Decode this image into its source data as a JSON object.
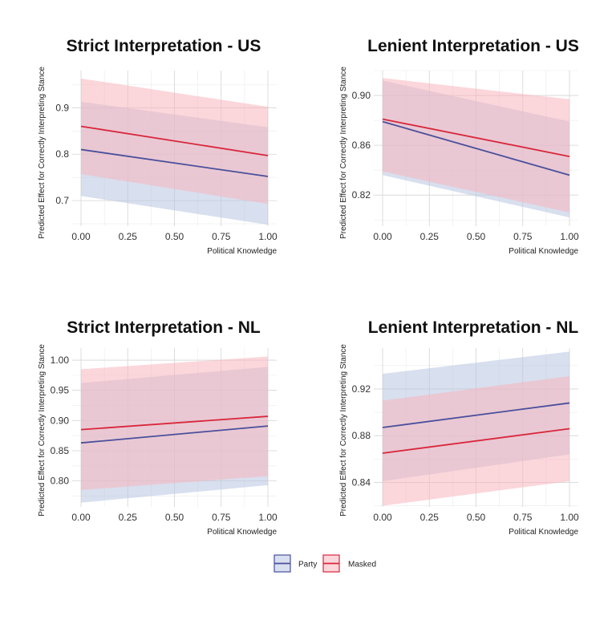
{
  "legend": {
    "items": [
      {
        "label": "Party",
        "color": "#4a4f9c",
        "fill": "#b8c4e0"
      },
      {
        "label": "Masked",
        "color": "#d9273c",
        "fill": "#f7b5bd"
      }
    ]
  },
  "chart_data": [
    {
      "type": "line",
      "title": "Strict Interpretation - US",
      "xlabel": "Political Knowledge",
      "ylabel": "Predicted Effect for Correctly Interpreting Stance",
      "xlim": [
        0,
        1
      ],
      "ylim": [
        0.645,
        0.98
      ],
      "xticks": [
        "0.00",
        "0.25",
        "0.50",
        "0.75",
        "1.00"
      ],
      "yticks": [
        "0.7",
        "0.8",
        "0.9"
      ],
      "ytick_values": [
        0.7,
        0.8,
        0.9
      ],
      "grid": true,
      "series": [
        {
          "name": "Party",
          "x": [
            0,
            1
          ],
          "y": [
            0.81,
            0.752
          ],
          "lower": [
            0.71,
            0.648
          ],
          "upper": [
            0.913,
            0.858
          ]
        },
        {
          "name": "Masked",
          "x": [
            0,
            1
          ],
          "y": [
            0.86,
            0.797
          ],
          "lower": [
            0.757,
            0.693
          ],
          "upper": [
            0.963,
            0.902
          ]
        }
      ]
    },
    {
      "type": "line",
      "title": "Lenient Interpretation - US",
      "xlabel": "Political Knowledge",
      "ylabel": "Predicted Effect for Correctly Interpreting Stance",
      "xlim": [
        0,
        1
      ],
      "ylim": [
        0.795,
        0.92
      ],
      "xticks": [
        "0.00",
        "0.25",
        "0.50",
        "0.75",
        "1.00"
      ],
      "yticks": [
        "0.82",
        "0.86",
        "0.90"
      ],
      "ytick_values": [
        0.82,
        0.86,
        0.9
      ],
      "grid": true,
      "series": [
        {
          "name": "Party",
          "x": [
            0,
            1
          ],
          "y": [
            0.879,
            0.836
          ],
          "lower": [
            0.836,
            0.802
          ],
          "upper": [
            0.912,
            0.879
          ]
        },
        {
          "name": "Masked",
          "x": [
            0,
            1
          ],
          "y": [
            0.881,
            0.851
          ],
          "lower": [
            0.839,
            0.806
          ],
          "upper": [
            0.914,
            0.897
          ]
        }
      ]
    },
    {
      "type": "line",
      "title": "Strict Interpretation - NL",
      "xlabel": "Political Knowledge",
      "ylabel": "Predicted Effect for Correctly Interpreting Stance",
      "xlim": [
        0,
        1
      ],
      "ylim": [
        0.757,
        1.02
      ],
      "xticks": [
        "0.00",
        "0.25",
        "0.50",
        "0.75",
        "1.00"
      ],
      "yticks": [
        "0.80",
        "0.85",
        "0.90",
        "0.95",
        "1.00"
      ],
      "ytick_values": [
        0.8,
        0.85,
        0.9,
        0.95,
        1.0
      ],
      "grid": true,
      "series": [
        {
          "name": "Party",
          "x": [
            0,
            1
          ],
          "y": [
            0.863,
            0.891
          ],
          "lower": [
            0.764,
            0.793
          ],
          "upper": [
            0.962,
            0.989
          ]
        },
        {
          "name": "Masked",
          "x": [
            0,
            1
          ],
          "y": [
            0.885,
            0.907
          ],
          "lower": [
            0.785,
            0.808
          ],
          "upper": [
            0.985,
            1.006
          ]
        }
      ]
    },
    {
      "type": "line",
      "title": "Lenient Interpretation - NL",
      "xlabel": "Political Knowledge",
      "ylabel": "Predicted Effect for Correctly Interpreting Stance",
      "xlim": [
        0,
        1
      ],
      "ylim": [
        0.819,
        0.955
      ],
      "xticks": [
        "0.00",
        "0.25",
        "0.50",
        "0.75",
        "1.00"
      ],
      "yticks": [
        "0.84",
        "0.88",
        "0.92"
      ],
      "ytick_values": [
        0.84,
        0.88,
        0.92
      ],
      "grid": true,
      "series": [
        {
          "name": "Party",
          "x": [
            0,
            1
          ],
          "y": [
            0.887,
            0.908
          ],
          "lower": [
            0.841,
            0.864
          ],
          "upper": [
            0.933,
            0.952
          ]
        },
        {
          "name": "Masked",
          "x": [
            0,
            1
          ],
          "y": [
            0.865,
            0.886
          ],
          "lower": [
            0.82,
            0.841
          ],
          "upper": [
            0.91,
            0.931
          ]
        }
      ]
    }
  ]
}
